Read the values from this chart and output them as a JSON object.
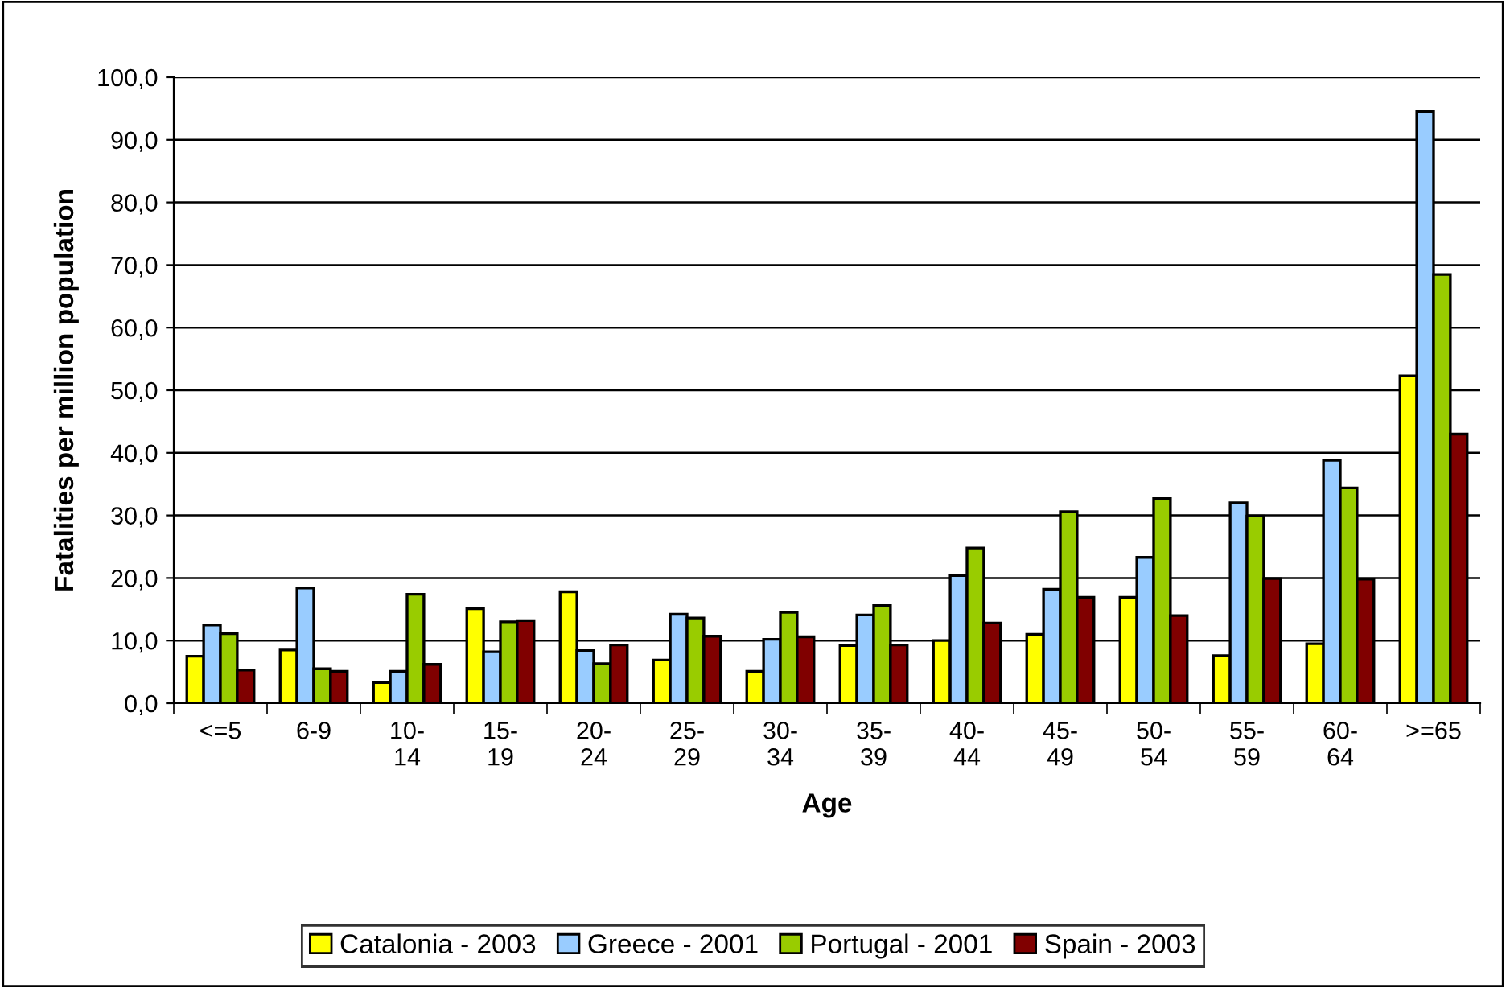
{
  "chart_data": {
    "type": "bar",
    "xlabel": "Age",
    "ylabel": "Fatalities per million population",
    "categories": [
      "<=5",
      "6-9",
      "10-\n14",
      "15-\n19",
      "20-\n24",
      "25-\n29",
      "30-\n34",
      "35-\n39",
      "40-\n44",
      "45-\n49",
      "50-\n54",
      "55-\n59",
      "60-\n64",
      ">=65"
    ],
    "series": [
      {
        "name": "Catalonia - 2003",
        "color": "#ffff00",
        "values": [
          7.5,
          8.5,
          3.3,
          15.1,
          17.8,
          6.9,
          5.1,
          9.2,
          10.0,
          11.0,
          16.9,
          7.6,
          9.5,
          52.3
        ]
      },
      {
        "name": "Greece - 2001",
        "color": "#99ccff",
        "values": [
          12.5,
          18.4,
          5.1,
          8.2,
          8.4,
          14.2,
          10.2,
          14.1,
          20.4,
          18.2,
          23.3,
          32.0,
          38.8,
          94.5
        ]
      },
      {
        "name": "Portugal - 2001",
        "color": "#99cc00",
        "values": [
          11.1,
          5.5,
          17.4,
          13.0,
          6.3,
          13.6,
          14.5,
          15.6,
          24.8,
          30.6,
          32.7,
          29.9,
          34.4,
          68.5
        ]
      },
      {
        "name": "Spain - 2003",
        "color": "#800000",
        "values": [
          5.3,
          5.1,
          6.2,
          13.2,
          9.3,
          10.7,
          10.6,
          9.3,
          12.8,
          16.9,
          14.0,
          19.9,
          19.8,
          43.0
        ]
      }
    ],
    "ylim": [
      0,
      100
    ],
    "yticks": [
      {
        "value": 0,
        "label": "0,0"
      },
      {
        "value": 10,
        "label": "10,0"
      },
      {
        "value": 20,
        "label": "20,0"
      },
      {
        "value": 30,
        "label": "30,0"
      },
      {
        "value": 40,
        "label": "40,0"
      },
      {
        "value": 50,
        "label": "50,0"
      },
      {
        "value": 60,
        "label": "60,0"
      },
      {
        "value": 70,
        "label": "70,0"
      },
      {
        "value": 80,
        "label": "80,0"
      },
      {
        "value": 90,
        "label": "90,0"
      },
      {
        "value": 100,
        "label": "100,0"
      }
    ],
    "grid": "y",
    "legend": "bottom"
  }
}
